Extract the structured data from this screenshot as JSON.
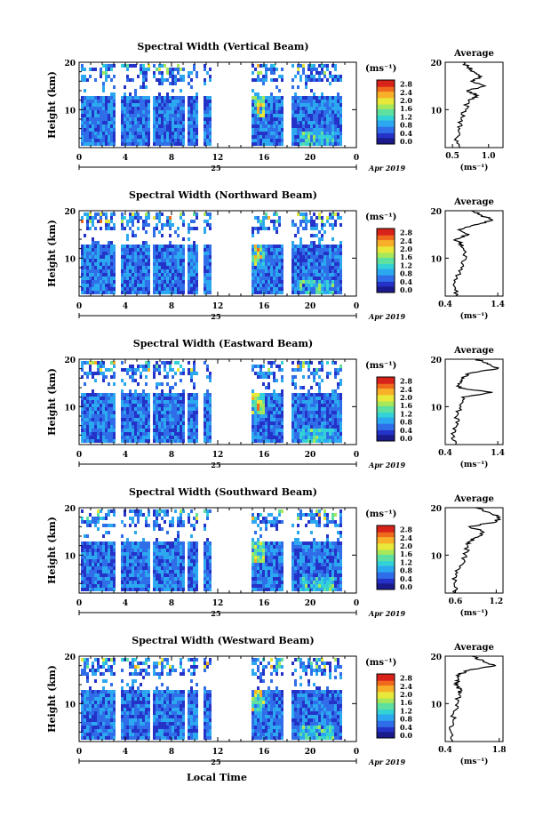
{
  "figure": {
    "date_label": "Apr 2019",
    "day_label": "25",
    "xlabel": "Local Time",
    "ylabel": "Height (km)",
    "colorbar_unit": "(ms⁻¹)",
    "colorbar_ticks": [
      "0.0",
      "0.4",
      "0.8",
      "1.2",
      "1.6",
      "2.0",
      "2.4",
      "2.8"
    ],
    "x_ticks": [
      "0",
      "4",
      "8",
      "12",
      "16",
      "20",
      "0"
    ],
    "y_ticks": [
      "10",
      "20"
    ],
    "avg_title": "Average",
    "avg_unit": "(ms⁻¹)",
    "colormap": [
      "#1b1b8c",
      "#2432c8",
      "#2f6ee8",
      "#2ca8f0",
      "#33d2d6",
      "#5de0a0",
      "#a6e85a",
      "#e8e83a",
      "#f8b028",
      "#f06a1e",
      "#d8221a"
    ]
  },
  "chart_data": [
    {
      "type": "heatmap",
      "title": "Spectral Width (Vertical Beam)",
      "xlabel": "Local Time",
      "ylabel": "Height (km)",
      "xlim": [
        0,
        24
      ],
      "ylim": [
        2,
        20
      ],
      "data_gaps_hours": [
        [
          3,
          3.6
        ],
        [
          6,
          6.3
        ],
        [
          9,
          9.3
        ],
        [
          10.2,
          10.6
        ],
        [
          11.4,
          14.8
        ],
        [
          17.6,
          18.3
        ]
      ],
      "colorbar": {
        "label": "(ms⁻¹)",
        "ticks": [
          0.0,
          0.4,
          0.8,
          1.2,
          1.6,
          2.0,
          2.4,
          2.8
        ],
        "range": [
          0,
          3.0
        ]
      },
      "average_profile": {
        "title": "Average",
        "xlabel": "(ms⁻¹)",
        "xticks": [
          "0.5",
          "1.0"
        ],
        "xlim": [
          0.4,
          1.2
        ],
        "height_km": [
          2,
          4,
          6,
          8,
          10,
          12,
          13,
          14,
          15,
          16,
          17,
          18,
          19,
          20
        ],
        "value": [
          0.6,
          0.55,
          0.6,
          0.62,
          0.68,
          0.72,
          0.85,
          0.7,
          0.95,
          0.75,
          0.9,
          0.8,
          0.72,
          0.65
        ]
      }
    },
    {
      "type": "heatmap",
      "title": "Spectral Width (Northward Beam)",
      "xlabel": "Local Time",
      "ylabel": "Height (km)",
      "xlim": [
        0,
        24
      ],
      "ylim": [
        2,
        20
      ],
      "data_gaps_hours": [
        [
          3,
          3.6
        ],
        [
          6,
          6.3
        ],
        [
          9,
          9.3
        ],
        [
          10.2,
          10.6
        ],
        [
          11.4,
          14.8
        ],
        [
          17.6,
          18.3
        ]
      ],
      "colorbar": {
        "label": "(ms⁻¹)",
        "ticks": [
          0.0,
          0.4,
          0.8,
          1.2,
          1.6,
          2.0,
          2.4,
          2.8
        ],
        "range": [
          0,
          3.0
        ]
      },
      "average_profile": {
        "title": "Average",
        "xlabel": "(ms⁻¹)",
        "xticks": [
          "0.4",
          "1.4"
        ],
        "xlim": [
          0.4,
          1.5
        ],
        "height_km": [
          2,
          4,
          6,
          8,
          10,
          12,
          13,
          14,
          15,
          16,
          17,
          18,
          19,
          20
        ],
        "value": [
          0.6,
          0.58,
          0.62,
          0.7,
          0.8,
          0.75,
          0.7,
          0.6,
          0.85,
          0.65,
          0.95,
          1.3,
          1.1,
          0.9
        ]
      }
    },
    {
      "type": "heatmap",
      "title": "Spectral Width (Eastward Beam)",
      "xlabel": "Local Time",
      "ylabel": "Height (km)",
      "xlim": [
        0,
        24
      ],
      "ylim": [
        2,
        20
      ],
      "data_gaps_hours": [
        [
          3,
          3.6
        ],
        [
          6,
          6.3
        ],
        [
          9,
          9.3
        ],
        [
          10.2,
          10.6
        ],
        [
          11.4,
          14.8
        ],
        [
          17.6,
          18.3
        ]
      ],
      "colorbar": {
        "label": "(ms⁻¹)",
        "ticks": [
          0.0,
          0.4,
          0.8,
          1.2,
          1.6,
          2.0,
          2.4,
          2.8
        ],
        "range": [
          0,
          3.0
        ]
      },
      "average_profile": {
        "title": "Average",
        "xlabel": "(ms⁻¹)",
        "xticks": [
          "0.4",
          "1.4"
        ],
        "xlim": [
          0.4,
          1.5
        ],
        "height_km": [
          2,
          4,
          6,
          8,
          10,
          12,
          13,
          14,
          15,
          16,
          17,
          18,
          19,
          20
        ],
        "value": [
          0.6,
          0.55,
          0.62,
          0.62,
          0.7,
          0.72,
          1.3,
          0.65,
          0.7,
          0.75,
          0.85,
          1.4,
          1.2,
          1.0
        ]
      }
    },
    {
      "type": "heatmap",
      "title": "Spectral Width (Southward Beam)",
      "xlabel": "Local Time",
      "ylabel": "Height (km)",
      "xlim": [
        0,
        24
      ],
      "ylim": [
        2,
        20
      ],
      "data_gaps_hours": [
        [
          3,
          3.6
        ],
        [
          6,
          6.3
        ],
        [
          9,
          9.3
        ],
        [
          10.2,
          10.6
        ],
        [
          11.4,
          14.8
        ],
        [
          17.6,
          18.3
        ]
      ],
      "colorbar": {
        "label": "(ms⁻¹)",
        "ticks": [
          0.0,
          0.4,
          0.8,
          1.2,
          1.6,
          2.0,
          2.4,
          2.8
        ],
        "range": [
          0,
          3.0
        ]
      },
      "average_profile": {
        "title": "Average",
        "xlabel": "(ms⁻¹)",
        "xticks": [
          "0.6",
          "1.2"
        ],
        "xlim": [
          0.45,
          1.3
        ],
        "height_km": [
          2,
          4,
          6,
          8,
          10,
          12,
          13,
          14,
          15,
          16,
          17,
          18,
          19,
          20
        ],
        "value": [
          0.6,
          0.58,
          0.6,
          0.7,
          0.75,
          0.78,
          0.82,
          0.95,
          1.0,
          0.8,
          1.2,
          1.25,
          1.1,
          0.9
        ]
      }
    },
    {
      "type": "heatmap",
      "title": "Spectral Width (Westward Beam)",
      "xlabel": "Local Time",
      "ylabel": "Height (km)",
      "xlim": [
        0,
        24
      ],
      "ylim": [
        2,
        20
      ],
      "data_gaps_hours": [
        [
          3,
          3.6
        ],
        [
          6,
          6.3
        ],
        [
          9,
          9.3
        ],
        [
          10.2,
          10.6
        ],
        [
          11.4,
          14.8
        ],
        [
          17.6,
          18.3
        ]
      ],
      "colorbar": {
        "label": "(ms⁻¹)",
        "ticks": [
          0.0,
          0.4,
          0.8,
          1.2,
          1.6,
          2.0,
          2.4,
          2.8
        ],
        "range": [
          0,
          3.0
        ]
      },
      "average_profile": {
        "title": "Average",
        "xlabel": "(ms⁻¹)",
        "xticks": [
          "0.4",
          "1.8"
        ],
        "xlim": [
          0.4,
          1.9
        ],
        "height_km": [
          2,
          4,
          6,
          8,
          10,
          12,
          13,
          14,
          15,
          16,
          17,
          18,
          19,
          20
        ],
        "value": [
          0.6,
          0.55,
          0.6,
          0.62,
          0.72,
          0.75,
          0.8,
          0.65,
          0.75,
          0.7,
          1.0,
          1.7,
          1.4,
          1.1
        ]
      }
    }
  ]
}
